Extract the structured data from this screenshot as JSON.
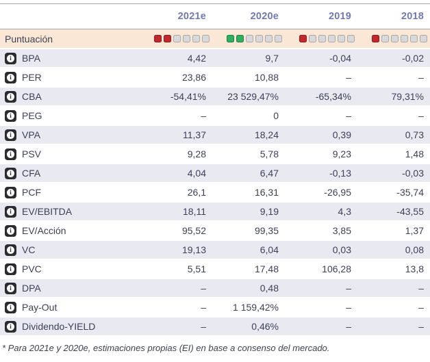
{
  "table": {
    "columns": [
      "2021e",
      "2020e",
      "2019",
      "2018"
    ],
    "score_row": {
      "label": "Puntuación",
      "total_squares": 6,
      "scores": [
        {
          "filled": 2,
          "color": "red"
        },
        {
          "filled": 2,
          "color": "green"
        },
        {
          "filled": 1,
          "color": "red"
        },
        {
          "filled": 1,
          "color": "red"
        }
      ]
    },
    "rows": [
      {
        "label": "BPA",
        "values": [
          "4,42",
          "9,7",
          "-0,04",
          "-0,02"
        ]
      },
      {
        "label": "PER",
        "values": [
          "23,86",
          "10,88",
          "–",
          "–"
        ]
      },
      {
        "label": "CBA",
        "values": [
          "-54,41%",
          "23 529,47%",
          "-65,34%",
          "79,31%"
        ]
      },
      {
        "label": "PEG",
        "values": [
          "–",
          "0",
          "–",
          "–"
        ]
      },
      {
        "label": "VPA",
        "values": [
          "11,37",
          "18,24",
          "0,39",
          "0,73"
        ]
      },
      {
        "label": "PSV",
        "values": [
          "9,28",
          "5,78",
          "9,23",
          "1,48"
        ]
      },
      {
        "label": "CFA",
        "values": [
          "4,04",
          "6,47",
          "-0,13",
          "-0,03"
        ]
      },
      {
        "label": "PCF",
        "values": [
          "26,1",
          "16,31",
          "-26,95",
          "-35,74"
        ]
      },
      {
        "label": "EV/EBITDA",
        "values": [
          "18,11",
          "9,19",
          "4,3",
          "-43,55"
        ]
      },
      {
        "label": "EV/Acción",
        "values": [
          "95,52",
          "99,35",
          "3,85",
          "1,37"
        ]
      },
      {
        "label": "VC",
        "values": [
          "19,13",
          "6,04",
          "0,03",
          "0,08"
        ]
      },
      {
        "label": "PVC",
        "values": [
          "5,51",
          "17,48",
          "106,28",
          "13,8"
        ]
      },
      {
        "label": "DPA",
        "values": [
          "–",
          "0,48",
          "–",
          "–"
        ]
      },
      {
        "label": "Pay-Out",
        "values": [
          "–",
          "1 159,42%",
          "–",
          "–"
        ]
      },
      {
        "label": "Dividendo-YIELD",
        "values": [
          "–",
          "0,46%",
          "–",
          "–"
        ]
      }
    ]
  },
  "footnote": "* Para 2021e y 2020e, estimaciones propias (EI) en base a consenso del mercado.",
  "icons": {
    "info": "i"
  },
  "colors": {
    "score_red": "#c1272d",
    "score_green": "#2eae60",
    "score_empty": "#d9d9dc",
    "score_row_bg": "#fbe7d5",
    "stripe_bg": "#e9e9f1",
    "header_text": "#7277b5"
  }
}
